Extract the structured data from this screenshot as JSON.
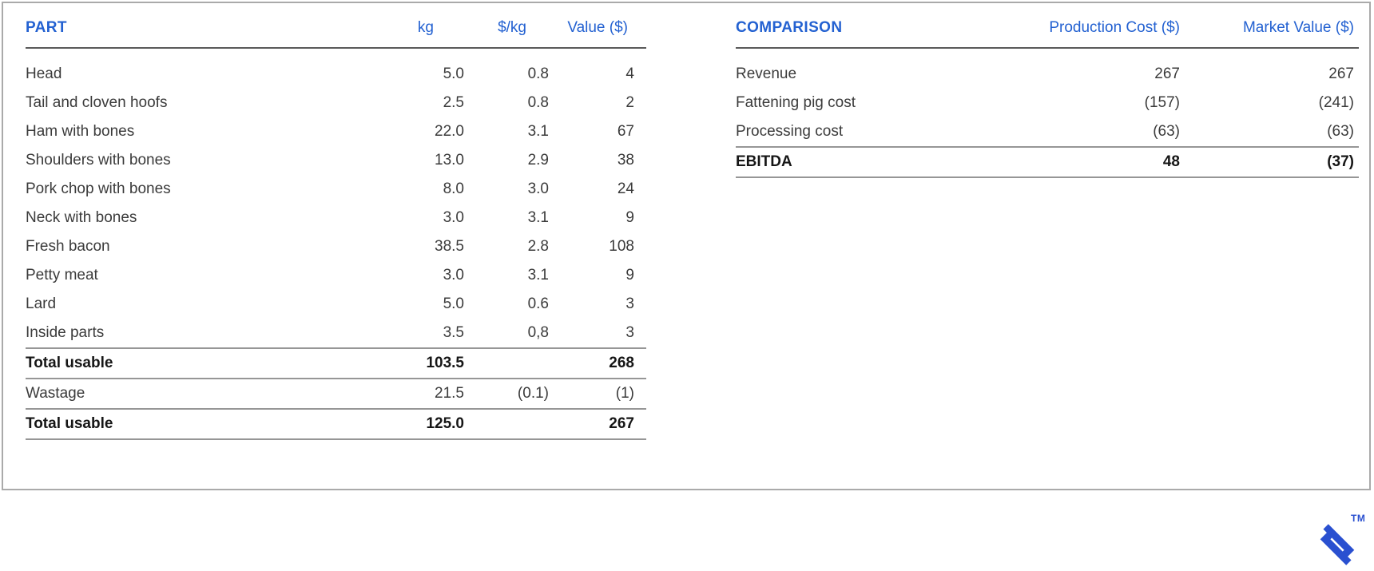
{
  "left_table": {
    "title": "PART",
    "columns": [
      "kg",
      "$/kg",
      "Value ($)"
    ],
    "rows": [
      {
        "label": "Head",
        "kg": "5.0",
        "per_kg": "0.8",
        "value": "4"
      },
      {
        "label": "Tail and cloven hoofs",
        "kg": "2.5",
        "per_kg": "0.8",
        "value": "2"
      },
      {
        "label": "Ham with bones",
        "kg": "22.0",
        "per_kg": "3.1",
        "value": "67"
      },
      {
        "label": "Shoulders with bones",
        "kg": "13.0",
        "per_kg": "2.9",
        "value": "38"
      },
      {
        "label": "Pork chop with bones",
        "kg": "8.0",
        "per_kg": "3.0",
        "value": "24"
      },
      {
        "label": "Neck with bones",
        "kg": "3.0",
        "per_kg": "3.1",
        "value": "9"
      },
      {
        "label": "Fresh bacon",
        "kg": "38.5",
        "per_kg": "2.8",
        "value": "108"
      },
      {
        "label": "Petty meat",
        "kg": "3.0",
        "per_kg": "3.1",
        "value": "9"
      },
      {
        "label": "Lard",
        "kg": "5.0",
        "per_kg": "0.6",
        "value": "3"
      },
      {
        "label": "Inside parts",
        "kg": "3.5",
        "per_kg": "0,8",
        "value": "3"
      },
      {
        "label": "Total usable",
        "kg": "103.5",
        "per_kg": "",
        "value": "268",
        "bold": true,
        "line_above": true,
        "line_below": true
      },
      {
        "label": "Wastage",
        "kg": "21.5",
        "per_kg": "(0.1)",
        "value": "(1)",
        "line_below": true
      },
      {
        "label": "Total usable",
        "kg": "125.0",
        "per_kg": "",
        "value": "267",
        "bold": true,
        "line_below": true
      }
    ]
  },
  "right_table": {
    "title": "COMPARISON",
    "columns": [
      "Production Cost ($)",
      "Market Value ($)"
    ],
    "rows": [
      {
        "label": "Revenue",
        "production_cost": "267",
        "market_value": "267"
      },
      {
        "label": "Fattening pig cost",
        "production_cost": "(157)",
        "market_value": "(241)"
      },
      {
        "label": "Processing cost",
        "production_cost": "(63)",
        "market_value": "(63)",
        "line_below": true
      },
      {
        "label": "EBITDA",
        "production_cost": "48",
        "market_value": "(37)",
        "bold": true,
        "line_below": true
      }
    ]
  },
  "branding": {
    "trademark": "TM",
    "logo": "toptal-logo",
    "logo_color": "#2a50d0"
  },
  "colors": {
    "header_blue": "#2361d1",
    "panel_border": "#aaaaaa",
    "body_text": "#3b3b3b"
  }
}
